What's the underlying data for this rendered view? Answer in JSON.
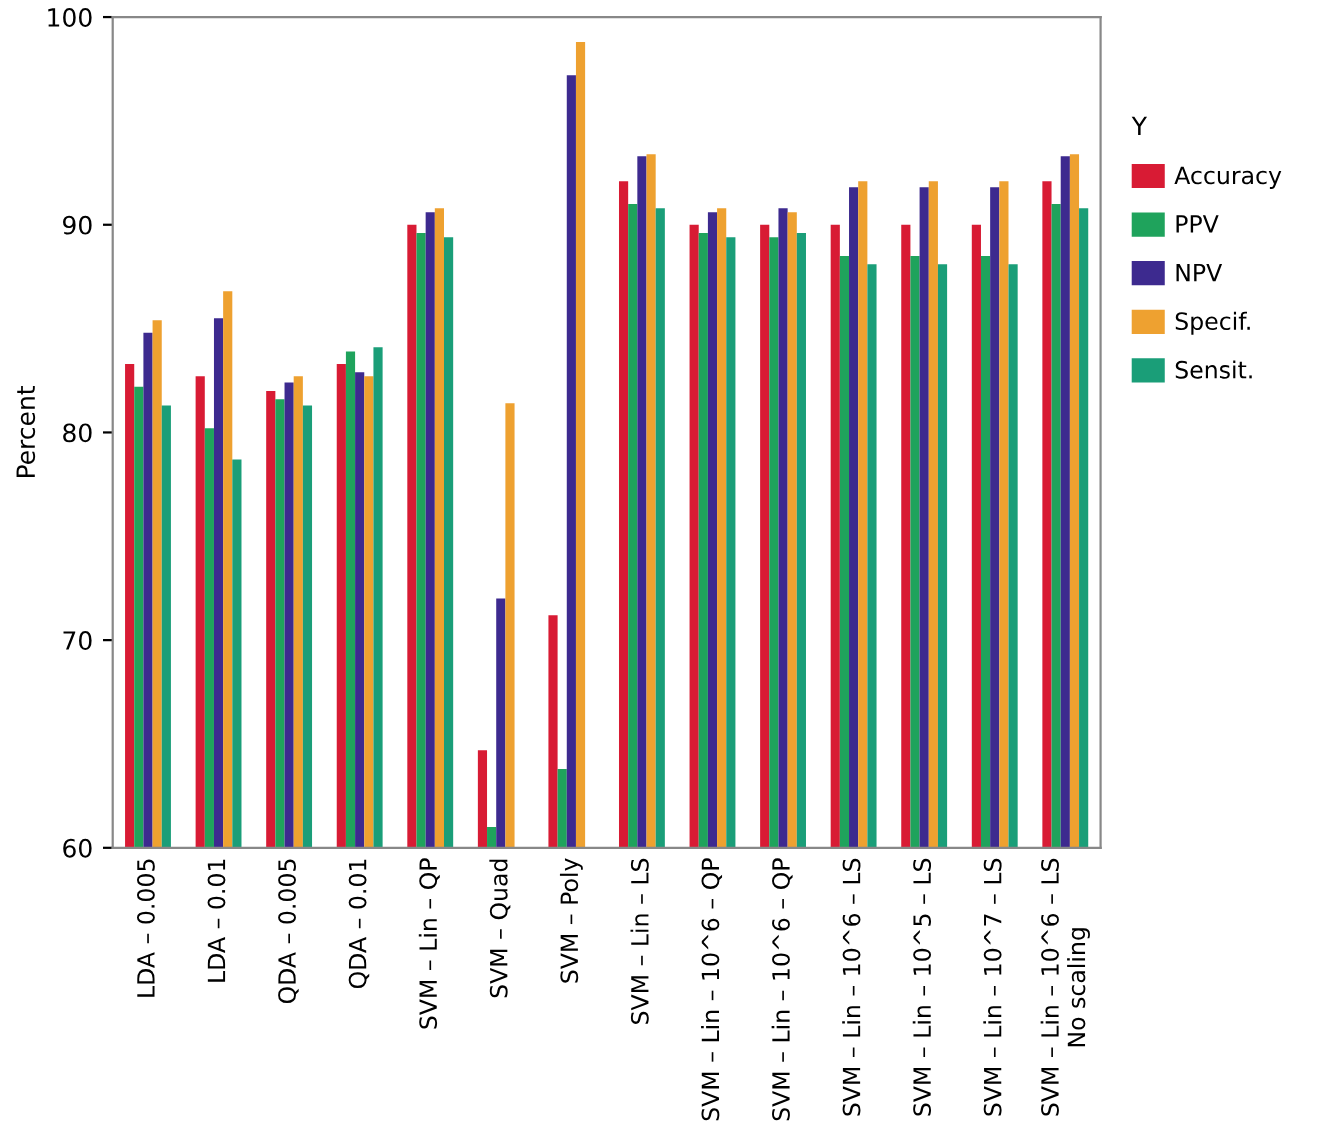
{
  "chart_data": {
    "type": "bar",
    "ylabel": "Percent",
    "legend_title": "Y",
    "legend": "right",
    "grid": false,
    "categories": [
      "LDA – 0.005",
      "LDA – 0.01",
      "QDA – 0.005",
      "QDA – 0.01",
      "SVM – Lin – QP",
      "SVM – Quad",
      "SVM – Poly",
      "SVM – Lin – LS",
      "SVM – Lin – 10^6 – QP",
      "SVM – Lin – 10^6 – QP",
      "SVM – Lin – 10^6 – LS",
      "SVM – Lin – 10^5 – LS",
      "SVM – Lin – 10^7 – LS",
      "SVM – Lin – 10^6 – LS\nNo scaling"
    ],
    "ylim": [
      60,
      100
    ],
    "yticks": [
      60,
      70,
      80,
      90,
      100
    ],
    "series": [
      {
        "name": "Accuracy",
        "color": "#d81b34",
        "values": [
          83.3,
          82.7,
          82.0,
          83.3,
          90.0,
          64.7,
          71.2,
          92.1,
          90.0,
          90.0,
          90.0,
          90.0,
          90.0,
          92.1
        ]
      },
      {
        "name": "PPV",
        "color": "#1fa35c",
        "values": [
          82.2,
          80.2,
          81.6,
          83.9,
          89.6,
          61.0,
          63.8,
          91.0,
          89.6,
          89.4,
          88.5,
          88.5,
          88.5,
          91.0
        ]
      },
      {
        "name": "NPV",
        "color": "#3d2a8f",
        "values": [
          84.8,
          85.5,
          82.4,
          82.9,
          90.6,
          72.0,
          97.2,
          93.3,
          90.6,
          90.8,
          91.8,
          91.8,
          91.8,
          93.3
        ]
      },
      {
        "name": "Specif.",
        "color": "#eea130",
        "values": [
          85.4,
          86.8,
          82.7,
          82.7,
          90.8,
          81.4,
          98.8,
          93.4,
          90.8,
          90.6,
          92.1,
          92.1,
          92.1,
          93.4
        ]
      },
      {
        "name": "Sensit.",
        "color": "#1a9e78",
        "values": [
          81.3,
          78.7,
          81.3,
          84.1,
          89.4,
          60,
          60,
          90.8,
          89.4,
          89.6,
          88.1,
          88.1,
          88.1,
          90.8
        ]
      }
    ]
  }
}
